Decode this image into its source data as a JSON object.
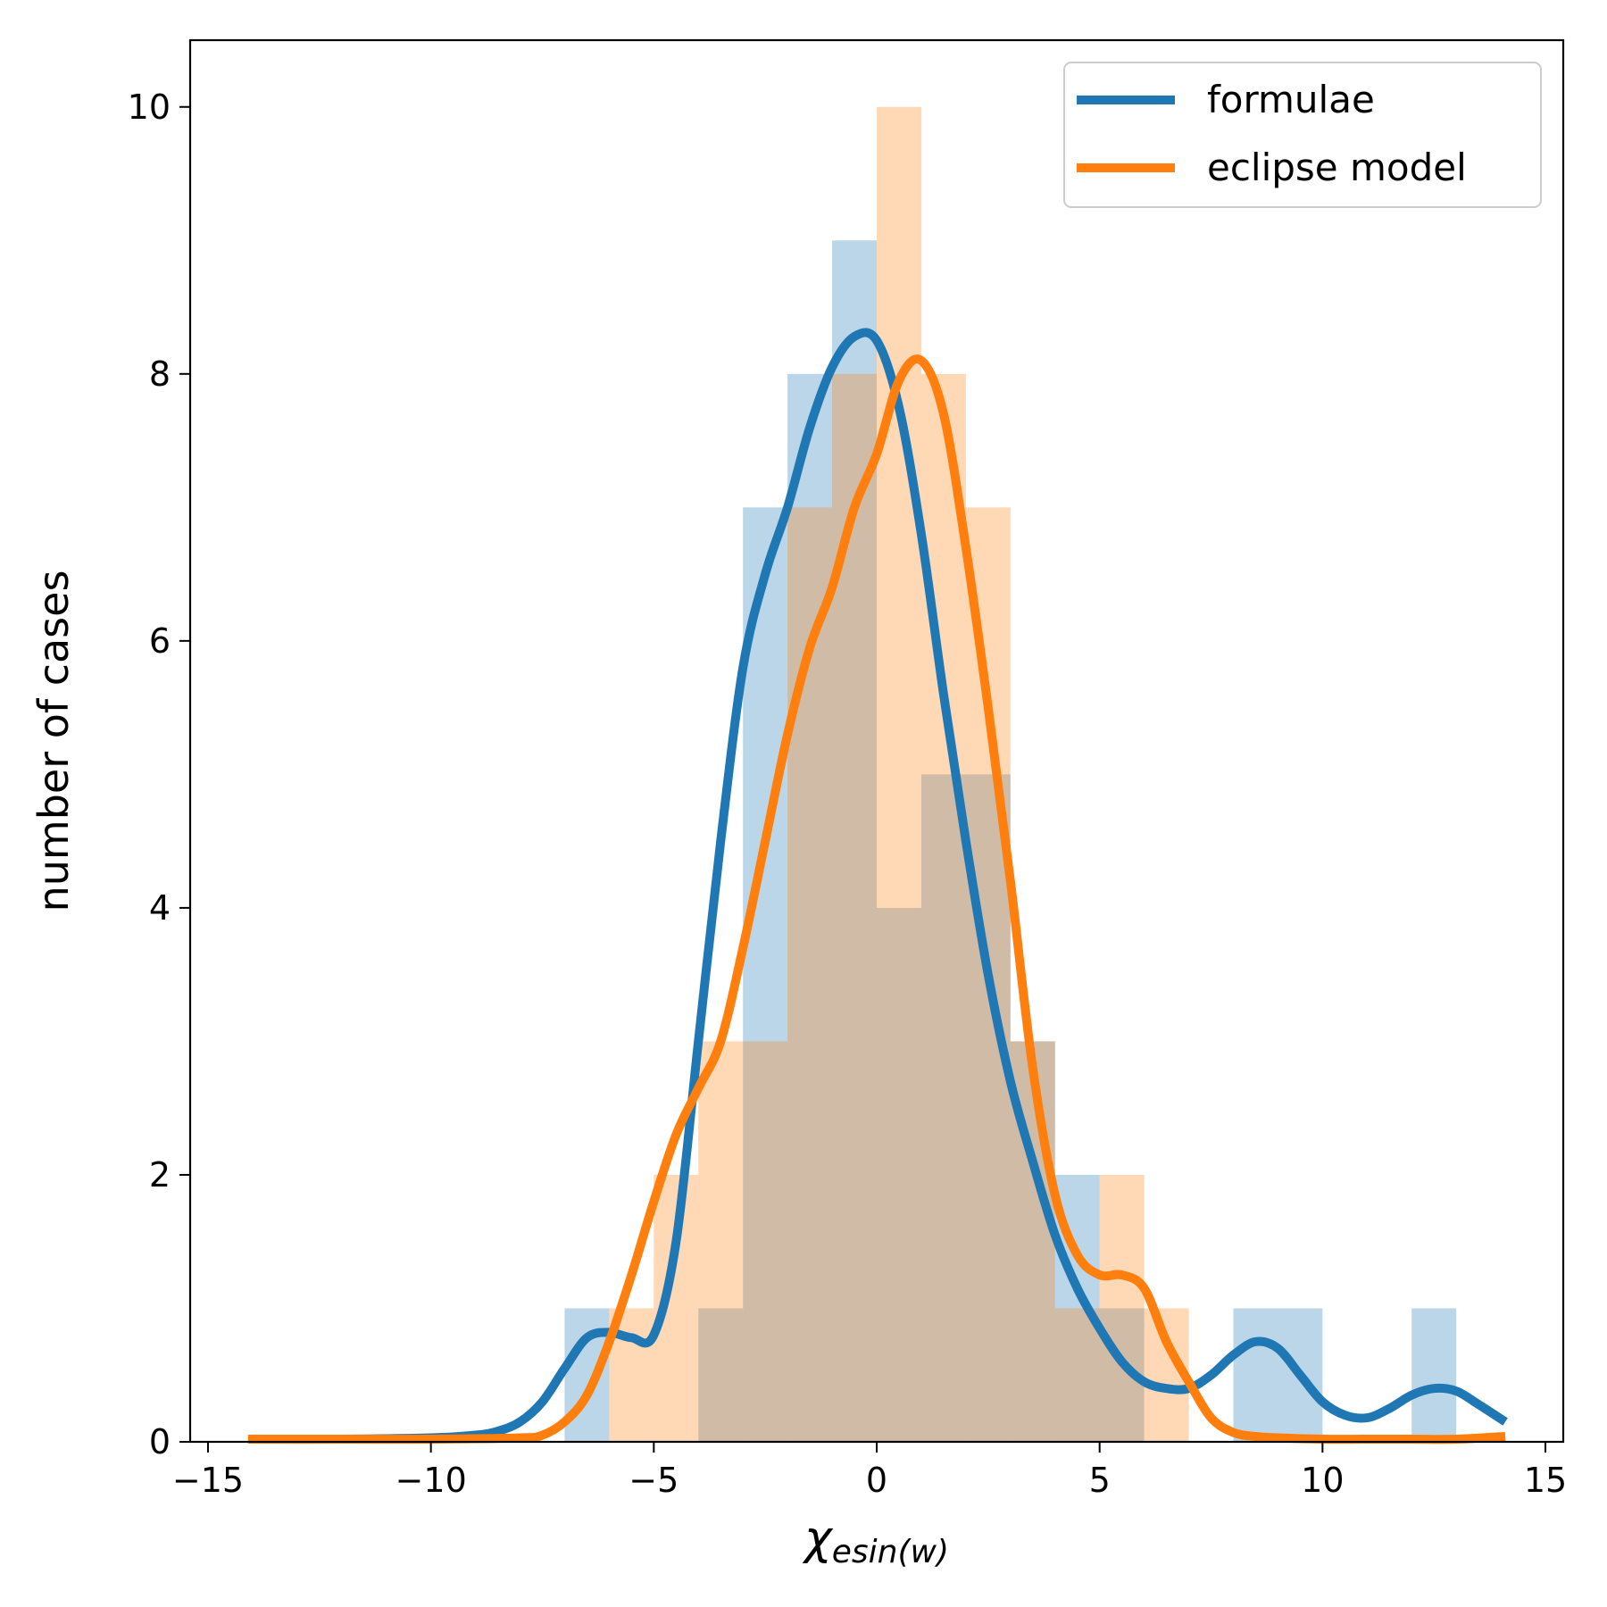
{
  "chart_data": {
    "type": "bar",
    "xlabel": "χ",
    "xlabel_sub": "esin(w)",
    "ylabel": "number of cases",
    "xlim": [
      -15.4,
      15.4
    ],
    "ylim": [
      0,
      10.5
    ],
    "xticks": [
      -15,
      -10,
      -5,
      0,
      5,
      10,
      15
    ],
    "xtick_labels": [
      "−15",
      "−10",
      "−5",
      "0",
      "5",
      "10",
      "15"
    ],
    "yticks": [
      0,
      2,
      4,
      6,
      8,
      10
    ],
    "ytick_labels": [
      "0",
      "2",
      "4",
      "6",
      "8",
      "10"
    ],
    "grid": false,
    "legend_position": "top-right",
    "histograms": [
      {
        "color": "#1f77b4",
        "alpha": 0.3,
        "bin_edges": [
          -7,
          -6,
          -5,
          -4,
          -3,
          -2,
          -1,
          0,
          1,
          2,
          3,
          4,
          5,
          6,
          7,
          8,
          9,
          10,
          11,
          12,
          13
        ],
        "counts": [
          1,
          0,
          0,
          1,
          7,
          8,
          9,
          4,
          5,
          5,
          3,
          2,
          1,
          0,
          0,
          1,
          1,
          0,
          0,
          1
        ]
      },
      {
        "color": "#ff7f0e",
        "alpha": 0.3,
        "bin_edges": [
          -7,
          -6,
          -5,
          -4,
          -3,
          -2,
          -1,
          0,
          1,
          2,
          3,
          4,
          5,
          6,
          7,
          8,
          9,
          10,
          11,
          12,
          13
        ],
        "counts": [
          0,
          1,
          2,
          3,
          3,
          7,
          8,
          10,
          8,
          7,
          3,
          1,
          2,
          1,
          0,
          0,
          0,
          0,
          0,
          0
        ]
      }
    ],
    "series": [
      {
        "name": "formulae",
        "color": "#1f77b4",
        "x": [
          -14.1,
          -12,
          -10,
          -9,
          -8.5,
          -8,
          -7.5,
          -7,
          -6.5,
          -6,
          -5.5,
          -5,
          -4.5,
          -4,
          -3.5,
          -3,
          -2.5,
          -2,
          -1.5,
          -1,
          -0.5,
          0,
          0.5,
          1,
          1.5,
          2,
          2.5,
          3,
          3.5,
          4,
          4.5,
          5,
          5.5,
          6,
          6.5,
          7,
          7.5,
          8,
          8.5,
          9,
          9.5,
          10,
          10.5,
          11,
          11.5,
          12,
          12.5,
          13,
          13.5,
          14.1
        ],
        "y": [
          0.02,
          0.02,
          0.03,
          0.05,
          0.08,
          0.15,
          0.3,
          0.55,
          0.78,
          0.82,
          0.78,
          0.8,
          1.5,
          3.0,
          4.5,
          5.8,
          6.5,
          7.0,
          7.6,
          8.05,
          8.28,
          8.25,
          7.75,
          6.8,
          5.6,
          4.5,
          3.5,
          2.7,
          2.1,
          1.55,
          1.15,
          0.85,
          0.6,
          0.45,
          0.4,
          0.4,
          0.5,
          0.65,
          0.75,
          0.7,
          0.5,
          0.3,
          0.2,
          0.18,
          0.25,
          0.35,
          0.4,
          0.38,
          0.28,
          0.15
        ]
      },
      {
        "name": "eclipse model",
        "color": "#ff7f0e",
        "x": [
          -14.1,
          -12,
          -10,
          -8,
          -7.5,
          -7,
          -6.5,
          -6,
          -5.5,
          -5,
          -4.5,
          -4,
          -3.5,
          -3,
          -2.5,
          -2,
          -1.5,
          -1,
          -0.5,
          0,
          0.5,
          1,
          1.5,
          2,
          2.5,
          3,
          3.5,
          4,
          4.5,
          5,
          5.5,
          6,
          6.5,
          7,
          7.5,
          8,
          8.5,
          9,
          10,
          11,
          12,
          13,
          14.1
        ],
        "y": [
          0.02,
          0.02,
          0.02,
          0.03,
          0.05,
          0.15,
          0.35,
          0.75,
          1.25,
          1.8,
          2.3,
          2.65,
          3.0,
          3.7,
          4.5,
          5.3,
          5.95,
          6.4,
          7.0,
          7.4,
          7.95,
          8.1,
          7.7,
          6.7,
          5.5,
          4.2,
          2.8,
          1.85,
          1.4,
          1.25,
          1.25,
          1.15,
          0.75,
          0.45,
          0.18,
          0.07,
          0.04,
          0.03,
          0.02,
          0.02,
          0.02,
          0.02,
          0.04
        ]
      }
    ]
  }
}
